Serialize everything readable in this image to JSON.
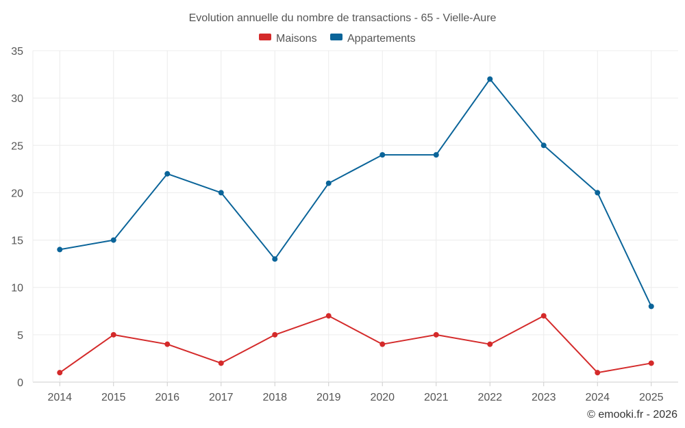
{
  "chart_data": {
    "type": "line",
    "title": "Evolution annuelle du nombre de transactions - 65 - Vielle-Aure",
    "categories": [
      "2014",
      "2015",
      "2016",
      "2017",
      "2018",
      "2019",
      "2020",
      "2021",
      "2022",
      "2023",
      "2024",
      "2025"
    ],
    "series": [
      {
        "name": "Maisons",
        "color": "#d42a2a",
        "values": [
          1,
          5,
          4,
          2,
          5,
          7,
          4,
          5,
          4,
          7,
          1,
          2
        ]
      },
      {
        "name": "Appartements",
        "color": "#0a6499",
        "values": [
          14,
          15,
          22,
          20,
          13,
          21,
          24,
          24,
          32,
          25,
          20,
          8
        ]
      }
    ],
    "ylim": [
      0,
      35
    ],
    "yticks": [
      0,
      5,
      10,
      15,
      20,
      25,
      30,
      35
    ],
    "xlabel": "",
    "ylabel": "",
    "grid": true,
    "legend_position": "top-center"
  },
  "credit": "© emooki.fr - 2026"
}
